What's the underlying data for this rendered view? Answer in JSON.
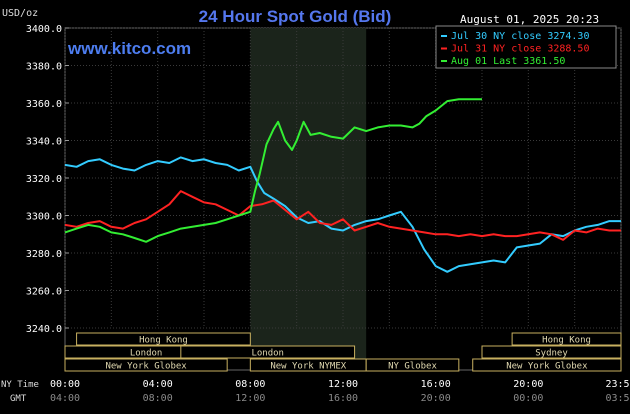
{
  "chart_data": {
    "type": "line",
    "title": "24 Hour Spot Gold (Bid)",
    "unit_label": "USD/oz",
    "source": "www.kitco.com",
    "timestamp": "August 01, 2025 20:23",
    "ylim": [
      3240,
      3400
    ],
    "y_ticks": [
      "3400.0",
      "3380.0",
      "3360.0",
      "3340.0",
      "3320.0",
      "3300.0",
      "3280.0",
      "3260.0",
      "3240.0"
    ],
    "x_tick_labels_ny": [
      "00:00",
      "04:00",
      "08:00",
      "12:00",
      "16:00",
      "20:00",
      "23:59"
    ],
    "x_tick_labels_gmt": [
      "04:00",
      "08:00",
      "12:00",
      "16:00",
      "20:00",
      "00:00",
      "03:59"
    ],
    "row_label_ny": "NY Time",
    "row_label_gmt": "GMT",
    "legend": [
      {
        "label": "Jul 30 NY close 3274.30",
        "color": "#33ccff"
      },
      {
        "label": "Jul 31 NY close 3288.50",
        "color": "#ff2222"
      },
      {
        "label": "Aug 01 Last 3361.50",
        "color": "#33ee33"
      }
    ],
    "series": [
      {
        "name": "Jul 30",
        "color": "#33ccff",
        "x": [
          0,
          0.5,
          1,
          1.5,
          2,
          2.5,
          3,
          3.5,
          4,
          4.5,
          5,
          5.5,
          6,
          6.5,
          7,
          7.5,
          8,
          8.3,
          8.6,
          9,
          9.5,
          10,
          10.5,
          11,
          11.5,
          12,
          12.5,
          13,
          13.5,
          14,
          14.5,
          15,
          15.5,
          16,
          16.5,
          17,
          17.5,
          18,
          18.5,
          19,
          19.5,
          20,
          20.5,
          21,
          21.5,
          22,
          22.5,
          23,
          23.5,
          24
        ],
        "values": [
          3327,
          3326,
          3329,
          3330,
          3327,
          3325,
          3324,
          3327,
          3329,
          3328,
          3331,
          3329,
          3330,
          3328,
          3327,
          3324,
          3326,
          3318,
          3312,
          3309,
          3305,
          3299,
          3296,
          3297,
          3293,
          3292,
          3295,
          3297,
          3298,
          3300,
          3302,
          3294,
          3282,
          3273,
          3270,
          3273,
          3274,
          3275,
          3276,
          3275,
          3283,
          3284,
          3285,
          3290,
          3289,
          3292,
          3294,
          3295,
          3297,
          3297
        ]
      },
      {
        "name": "Jul 31",
        "color": "#ff2222",
        "x": [
          0,
          0.5,
          1,
          1.5,
          2,
          2.5,
          3,
          3.5,
          4,
          4.5,
          5,
          5.5,
          6,
          6.5,
          7,
          7.5,
          8,
          8.5,
          9,
          9.5,
          10,
          10.5,
          11,
          11.5,
          12,
          12.5,
          13,
          13.5,
          14,
          14.5,
          15,
          15.5,
          16,
          16.5,
          17,
          17.5,
          18,
          18.5,
          19,
          19.5,
          20,
          20.5,
          21,
          21.5,
          22,
          22.5,
          23,
          23.5,
          24
        ],
        "values": [
          3295,
          3294,
          3296,
          3297,
          3294,
          3293,
          3296,
          3298,
          3302,
          3306,
          3313,
          3310,
          3307,
          3306,
          3303,
          3300,
          3305,
          3306,
          3308,
          3303,
          3298,
          3302,
          3296,
          3295,
          3298,
          3292,
          3294,
          3296,
          3294,
          3293,
          3292,
          3291,
          3290,
          3290,
          3289,
          3290,
          3289,
          3290,
          3289,
          3289,
          3290,
          3291,
          3290,
          3287,
          3292,
          3291,
          3293,
          3292,
          3292
        ]
      },
      {
        "name": "Aug 01",
        "color": "#33ee33",
        "x": [
          0,
          0.5,
          1,
          1.5,
          2,
          2.5,
          3,
          3.5,
          4,
          4.5,
          5,
          5.5,
          6,
          6.5,
          7,
          7.5,
          8,
          8.2,
          8.4,
          8.7,
          9,
          9.2,
          9.5,
          9.8,
          10,
          10.3,
          10.6,
          11,
          11.5,
          12,
          12.5,
          13,
          13.5,
          14,
          14.5,
          15,
          15.3,
          15.6,
          16,
          16.5,
          17,
          17.5,
          18
        ],
        "values": [
          3291,
          3293,
          3295,
          3294,
          3291,
          3290,
          3288,
          3286,
          3289,
          3291,
          3293,
          3294,
          3295,
          3296,
          3298,
          3300,
          3302,
          3313,
          3322,
          3338,
          3346,
          3350,
          3340,
          3335,
          3340,
          3350,
          3343,
          3344,
          3342,
          3341,
          3347,
          3345,
          3347,
          3348,
          3348,
          3347,
          3349,
          3353,
          3356,
          3361,
          3362,
          3362,
          3362
        ]
      }
    ],
    "sessions": [
      {
        "name": "Hong Kong",
        "row": 0,
        "start": 0.5,
        "end": 8.0
      },
      {
        "name": "London",
        "row": 1,
        "start": 0.0,
        "end": 7.0
      },
      {
        "name": "New York Globex",
        "row": 2,
        "start": 0.0,
        "end": 7.0
      },
      {
        "name": "London",
        "row": 1,
        "start": 5.0,
        "end": 12.5
      },
      {
        "name": "New York NYMEX",
        "row": 2,
        "start": 8.0,
        "end": 13.0
      },
      {
        "name": "NY Globex",
        "row": 2,
        "start": 13.0,
        "end": 17.0
      },
      {
        "name": "Hong Kong",
        "row": 0,
        "start": 19.3,
        "end": 24.0
      },
      {
        "name": "Sydney",
        "row": 1,
        "start": 18.0,
        "end": 24.0
      },
      {
        "name": "New York Globex",
        "row": 2,
        "start": 17.6,
        "end": 24.0
      }
    ],
    "shaded_region": [
      8.0,
      13.0
    ],
    "grid": true
  }
}
